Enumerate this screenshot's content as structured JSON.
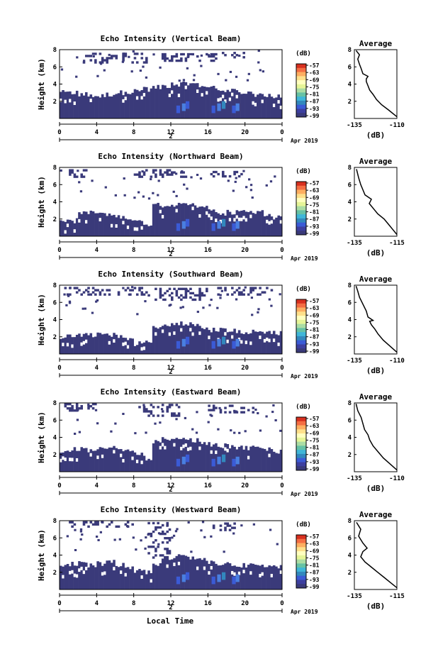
{
  "figure": {
    "xlabel": "Local Time",
    "date_label": "Apr 2019",
    "date_number": "2",
    "colorbar_unit": "(dB)",
    "colorbar_ticks": [
      "-57",
      "-63",
      "-69",
      "-75",
      "-81",
      "-87",
      "-93",
      "-99"
    ],
    "colorbar_colors": [
      "#d7301f",
      "#f46d43",
      "#fdae61",
      "#fee08b",
      "#ffffbf",
      "#e6f598",
      "#abdda4",
      "#66c2a5",
      "#3fb6d8",
      "#3288bd",
      "#3b5bd6",
      "#3d3fa0",
      "#3a3a7a"
    ],
    "data_color": "#3a3a7a",
    "avg_title": "Average",
    "avg_unit": "(dB)"
  },
  "chart_data": [
    {
      "type": "heatmap",
      "title": "Echo Intensity (Vertical Beam)",
      "ylabel": "Height (km)",
      "xlim": [
        0,
        24
      ],
      "ylim": [
        0,
        8
      ],
      "xticks": [
        "0",
        "4",
        "8",
        "12",
        "16",
        "20",
        "0"
      ],
      "yticks": [
        "2",
        "4",
        "6",
        "8"
      ],
      "low_top": [
        3.0,
        3.0,
        2.8,
        2.6,
        2.6,
        2.8,
        3.0,
        3.0,
        3.2,
        3.4,
        3.6,
        3.8,
        4.0,
        4.0,
        4.0,
        3.8,
        3.6,
        3.3,
        3.2,
        3.0,
        3.0,
        2.8,
        2.6,
        2.5
      ],
      "upper_band": [
        [
          2.5,
          9.5,
          6.4,
          7.6
        ],
        [
          11,
          17,
          6.6,
          7.4
        ],
        [
          17.5,
          20,
          7.0,
          7.6
        ]
      ],
      "profile": {
        "xlim": [
          -135,
          -110
        ],
        "xticks": [
          "-135",
          "-110"
        ],
        "yticks": [
          "2",
          "4",
          "6",
          "8"
        ],
        "x": [
          -110,
          -115,
          -119,
          -122,
          -124,
          -126,
          -127,
          -128,
          -128,
          -127,
          -130,
          -131,
          -132,
          -133,
          -132,
          -134
        ],
        "y": [
          0.2,
          1.0,
          1.6,
          2.2,
          2.8,
          3.3,
          3.8,
          4.3,
          4.6,
          4.9,
          5.2,
          5.8,
          6.3,
          6.9,
          7.4,
          7.9
        ]
      }
    },
    {
      "type": "heatmap",
      "title": "Echo Intensity (Northward Beam)",
      "ylabel": "Height (km)",
      "xlim": [
        0,
        24
      ],
      "ylim": [
        0,
        8
      ],
      "xticks": [
        "0",
        "4",
        "8",
        "12",
        "16",
        "20",
        "0"
      ],
      "yticks": [
        "2",
        "4",
        "6",
        "8"
      ],
      "low_top": [
        1.8,
        1.8,
        2.6,
        2.8,
        2.6,
        2.4,
        2.2,
        2.0,
        1.6,
        1.4,
        3.6,
        3.6,
        3.6,
        3.6,
        3.6,
        3.6,
        3.0,
        2.6,
        2.8,
        2.8,
        2.8,
        2.8,
        2.6,
        2.2
      ],
      "upper_band": [
        [
          1,
          3,
          6.8,
          7.8
        ],
        [
          8,
          14,
          6.8,
          7.8
        ],
        [
          16,
          20,
          6.6,
          7.6
        ]
      ],
      "profile": {
        "xlim": [
          -135,
          -115
        ],
        "xticks": [
          "-135",
          "-115"
        ],
        "yticks": [
          "2",
          "4",
          "6",
          "8"
        ],
        "x": [
          -115,
          -117,
          -119,
          -121,
          -124,
          -126,
          -128,
          -127,
          -130,
          -131,
          -132,
          -133,
          -134
        ],
        "y": [
          0.2,
          0.8,
          1.4,
          2.0,
          2.6,
          3.2,
          3.8,
          4.3,
          4.8,
          5.4,
          6.0,
          6.8,
          7.8
        ]
      }
    },
    {
      "type": "heatmap",
      "title": "Echo Intensity (Southward Beam)",
      "ylabel": "Height (km)",
      "xlim": [
        0,
        24
      ],
      "ylim": [
        0,
        8
      ],
      "xticks": [
        "0",
        "4",
        "8",
        "12",
        "16",
        "20",
        "0"
      ],
      "yticks": [
        "2",
        "4",
        "6",
        "8"
      ],
      "low_top": [
        2.0,
        2.0,
        2.2,
        2.2,
        2.4,
        2.2,
        2.0,
        1.6,
        1.2,
        1.6,
        3.0,
        3.4,
        3.6,
        3.6,
        3.4,
        3.0,
        2.8,
        2.8,
        2.8,
        2.6,
        2.6,
        2.6,
        2.6,
        2.4
      ],
      "upper_band": [
        [
          0.5,
          9.5,
          6.8,
          7.8
        ],
        [
          9.5,
          16,
          6.2,
          7.6
        ],
        [
          17,
          23,
          6.8,
          7.8
        ]
      ],
      "profile": {
        "xlim": [
          -135,
          -110
        ],
        "xticks": [
          "-135",
          "-110"
        ],
        "yticks": [
          "2",
          "4",
          "6",
          "8"
        ],
        "x": [
          -110,
          -114,
          -118,
          -121,
          -123,
          -125,
          -126,
          -124,
          -127,
          -128,
          -130,
          -132,
          -133,
          -134
        ],
        "y": [
          0.2,
          0.9,
          1.6,
          2.3,
          2.9,
          3.4,
          3.8,
          3.9,
          4.3,
          5.0,
          5.8,
          6.6,
          7.3,
          7.9
        ]
      }
    },
    {
      "type": "heatmap",
      "title": "Echo Intensity (Eastward Beam)",
      "ylabel": "Height (km)",
      "xlim": [
        0,
        24
      ],
      "ylim": [
        0,
        8
      ],
      "xticks": [
        "0",
        "4",
        "8",
        "12",
        "16",
        "20",
        "0"
      ],
      "yticks": [
        "2",
        "4",
        "6",
        "8"
      ],
      "low_top": [
        2.4,
        2.6,
        2.6,
        2.4,
        2.6,
        2.8,
        2.6,
        2.4,
        2.0,
        1.6,
        3.4,
        3.8,
        3.8,
        3.8,
        3.6,
        3.4,
        3.2,
        3.0,
        3.0,
        2.8,
        2.8,
        2.8,
        2.6,
        2.4
      ],
      "upper_band": [
        [
          0.5,
          4,
          7.0,
          7.8
        ],
        [
          8.5,
          13,
          6.4,
          7.8
        ],
        [
          16,
          21,
          6.8,
          7.8
        ]
      ],
      "profile": {
        "xlim": [
          -135,
          -110
        ],
        "xticks": [
          "-135",
          "-110"
        ],
        "yticks": [
          "2",
          "4",
          "6",
          "8"
        ],
        "x": [
          -110,
          -114,
          -118,
          -121,
          -124,
          -126,
          -127,
          -129,
          -130,
          -131,
          -133,
          -134
        ],
        "y": [
          0.2,
          0.9,
          1.6,
          2.3,
          3.0,
          3.7,
          4.3,
          4.9,
          5.6,
          6.3,
          7.1,
          7.9
        ]
      }
    },
    {
      "type": "heatmap",
      "title": "Echo Intensity (Westward Beam)",
      "ylabel": "Height (km)",
      "xlim": [
        0,
        24
      ],
      "ylim": [
        0,
        8
      ],
      "xticks": [
        "0",
        "4",
        "8",
        "12",
        "16",
        "20",
        "0"
      ],
      "yticks": [
        "2",
        "4",
        "6",
        "8"
      ],
      "low_top": [
        2.8,
        3.0,
        3.0,
        2.8,
        3.0,
        3.2,
        2.8,
        2.6,
        2.2,
        2.0,
        3.0,
        3.6,
        3.8,
        3.8,
        3.6,
        3.4,
        3.2,
        3.0,
        3.0,
        2.8,
        2.8,
        2.8,
        2.6,
        2.6
      ],
      "upper_band": [
        [
          9.5,
          12,
          3.6,
          7.8
        ],
        [
          1,
          8,
          7.2,
          7.8
        ],
        [
          16,
          19,
          6.8,
          7.6
        ]
      ],
      "profile": {
        "xlim": [
          -135,
          -115
        ],
        "xticks": [
          "-135",
          "-115"
        ],
        "yticks": [
          "2",
          "4",
          "6",
          "8"
        ],
        "x": [
          -115,
          -118,
          -121,
          -124,
          -127,
          -130,
          -132,
          -131,
          -129,
          -131,
          -133,
          -132,
          -134
        ],
        "y": [
          0.2,
          0.8,
          1.4,
          2.0,
          2.6,
          3.2,
          3.8,
          4.4,
          4.8,
          5.4,
          6.2,
          7.0,
          7.8
        ]
      }
    }
  ]
}
